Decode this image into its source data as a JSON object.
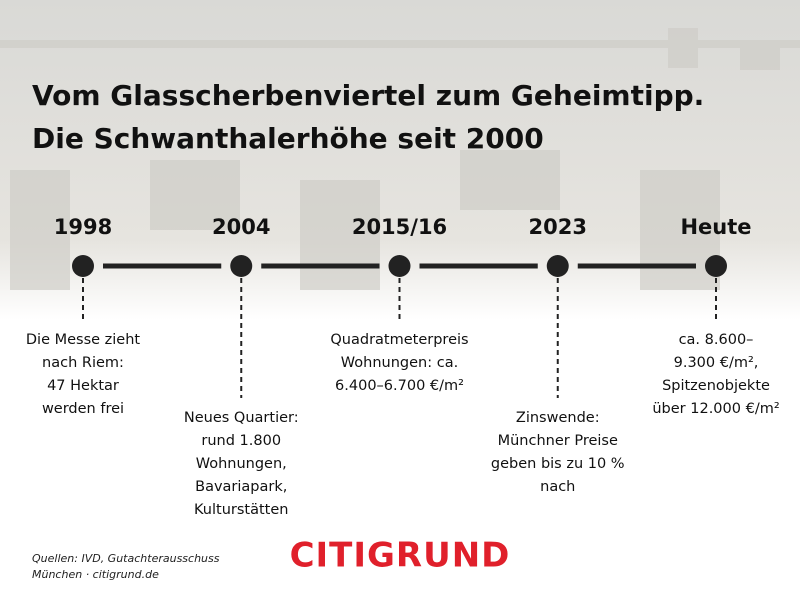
{
  "title": [
    "Vom Glasscherbenviertel zum Geheimtipp.",
    "Die Schwanthalerhöhe seit 2000"
  ],
  "events": [
    {
      "year": "1998",
      "lines": [
        "Die Messe zieht",
        "nach Riem:",
        "47 Hektar",
        "werden frei"
      ]
    },
    {
      "year": "2004",
      "lines": [
        "Neues Quartier:",
        "rund 1.800",
        "Wohnungen,",
        "Bavariapark,",
        "Kulturstätten"
      ]
    },
    {
      "year": "2015/16",
      "lines": [
        "Quadratmeterpreis",
        "Wohnungen: ca.",
        "6.400–6.700 €/m²"
      ]
    },
    {
      "year": "2023",
      "lines": [
        "Zinswende:",
        "Münchner Preise",
        "geben bis zu 10 %",
        "nach"
      ]
    },
    {
      "year": "Heute",
      "lines": [
        "ca. 8.600–",
        "9.300 €/m²,",
        "Spitzenobjekte",
        "über 12.000 €/m²"
      ]
    }
  ],
  "sources": [
    "Quellen: IVD, Gutachterausschuss",
    "München · citigrund.de"
  ],
  "logo": "CITIGRUND"
}
